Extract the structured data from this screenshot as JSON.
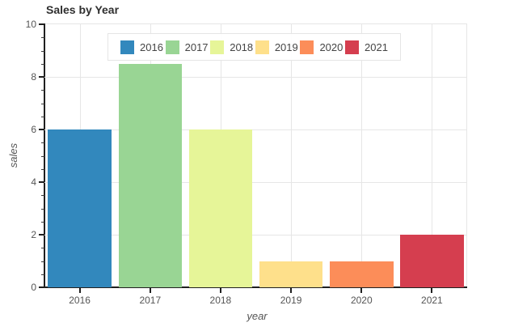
{
  "chart_data": {
    "type": "bar",
    "title": "Sales by Year",
    "categories": [
      "2016",
      "2017",
      "2018",
      "2019",
      "2020",
      "2021"
    ],
    "values": [
      6,
      8.5,
      6,
      1,
      1,
      2
    ],
    "bar_colors": [
      "#3288bd",
      "#99d594",
      "#e6f598",
      "#fee08b",
      "#fc8d59",
      "#d53e4f"
    ],
    "xlabel": "year",
    "ylabel": "sales",
    "ylim": [
      0,
      10
    ],
    "y_major_ticks": [
      0,
      2,
      4,
      6,
      8,
      10
    ],
    "y_minor_tick_step": 0.5,
    "grid": true,
    "legend_position": "top-center",
    "legend_entries": [
      {
        "label": "2016",
        "color": "#3288bd"
      },
      {
        "label": "2017",
        "color": "#99d594"
      },
      {
        "label": "2018",
        "color": "#e6f598"
      },
      {
        "label": "2019",
        "color": "#fee08b"
      },
      {
        "label": "2020",
        "color": "#fc8d59"
      },
      {
        "label": "2021",
        "color": "#d53e4f"
      }
    ]
  },
  "toolbar": {
    "logo_icon": "bokeh-logo-icon",
    "active_tool_color": "#26aae1",
    "tools": [
      {
        "icon": "move-icon",
        "active": true
      },
      {
        "icon": "box-zoom-icon",
        "active": false
      },
      {
        "icon": "wheel-zoom-icon",
        "active": false
      },
      {
        "icon": "save-icon",
        "active": false
      },
      {
        "icon": "reset-icon",
        "active": false
      },
      {
        "icon": "help-icon",
        "active": false
      }
    ]
  },
  "colors": {
    "grid": "#e6e6e6",
    "axis": "#1f1f1f",
    "tick_label": "#555555",
    "title": "#2f2f2f",
    "legend_border": "#e5e5e5",
    "toolbar_icon": "#a1a1a1"
  }
}
